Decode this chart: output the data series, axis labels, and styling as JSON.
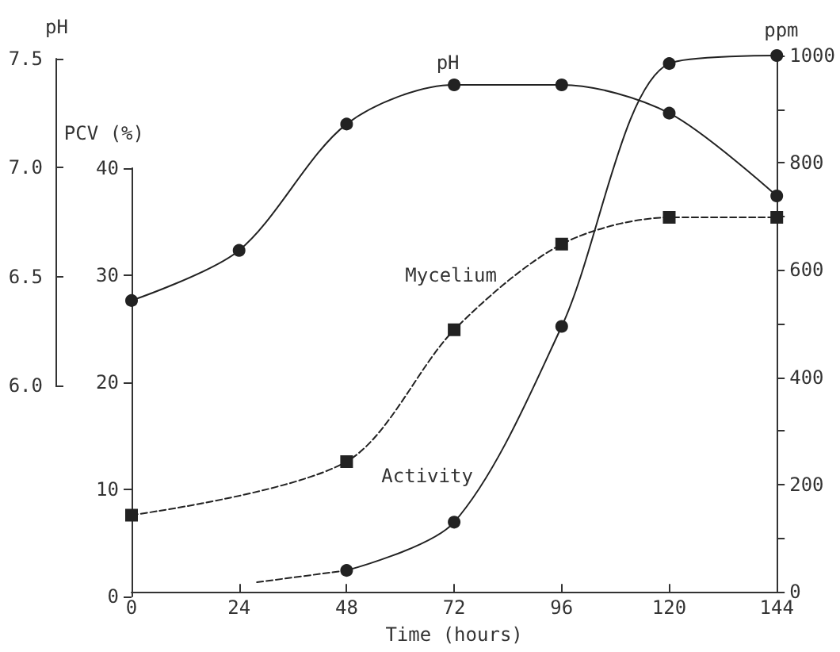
{
  "chart_data": {
    "type": "line",
    "xlabel": "Time (hours)",
    "ylabel": "ppm",
    "y2label": "PCV (%)",
    "y3label": "pH",
    "xlim": [
      0,
      144
    ],
    "xticks": [
      0,
      24,
      48,
      72,
      96,
      120,
      144
    ],
    "ylim": [
      0,
      1000
    ],
    "yticks": [
      0,
      {
        "value": 100,
        "label": null
      },
      200,
      {
        "value": 300,
        "label": null
      },
      400,
      {
        "value": 500,
        "label": null
      },
      600,
      {
        "value": 700,
        "label": null
      },
      800,
      {
        "value": 900,
        "label": null
      },
      1000
    ],
    "y2lim": [
      0,
      40
    ],
    "y2ticks": [
      0,
      10,
      20,
      30,
      40
    ],
    "y3lim": [
      6,
      7.5
    ],
    "y3ticks": [
      {
        "value": 6,
        "label": "6.0"
      },
      6.5,
      {
        "value": 7,
        "label": "7.0"
      },
      7.5
    ],
    "grid": false,
    "legend": false,
    "series": [
      {
        "name": "pH",
        "axis": "y3",
        "color": "#222222",
        "marker": "circle",
        "line_style": "solid",
        "x": [
          0,
          24,
          48,
          72,
          96,
          120,
          144
        ],
        "values": [
          6.39,
          6.62,
          7.2,
          7.38,
          7.38,
          7.25,
          6.87
        ]
      },
      {
        "name": "Mycelium",
        "axis": "y2",
        "color": "#222222",
        "marker": "square",
        "line_style": "dashed",
        "x": [
          0,
          48,
          72,
          96,
          120,
          144
        ],
        "values": [
          7.6,
          12.6,
          24.9,
          32.9,
          35.4,
          35.4
        ]
      },
      {
        "name": "Activity",
        "axis": "y",
        "color": "#222222",
        "marker": "circle",
        "line_style": "solid",
        "x": [
          48,
          72,
          96,
          120,
          144
        ],
        "values": [
          40,
          130,
          495,
          985,
          1000
        ]
      },
      {
        "axis": "y",
        "color": "#222222",
        "marker": "none",
        "line_style": "dashed",
        "x": [
          28,
          48
        ],
        "values": [
          18,
          40
        ]
      }
    ]
  }
}
